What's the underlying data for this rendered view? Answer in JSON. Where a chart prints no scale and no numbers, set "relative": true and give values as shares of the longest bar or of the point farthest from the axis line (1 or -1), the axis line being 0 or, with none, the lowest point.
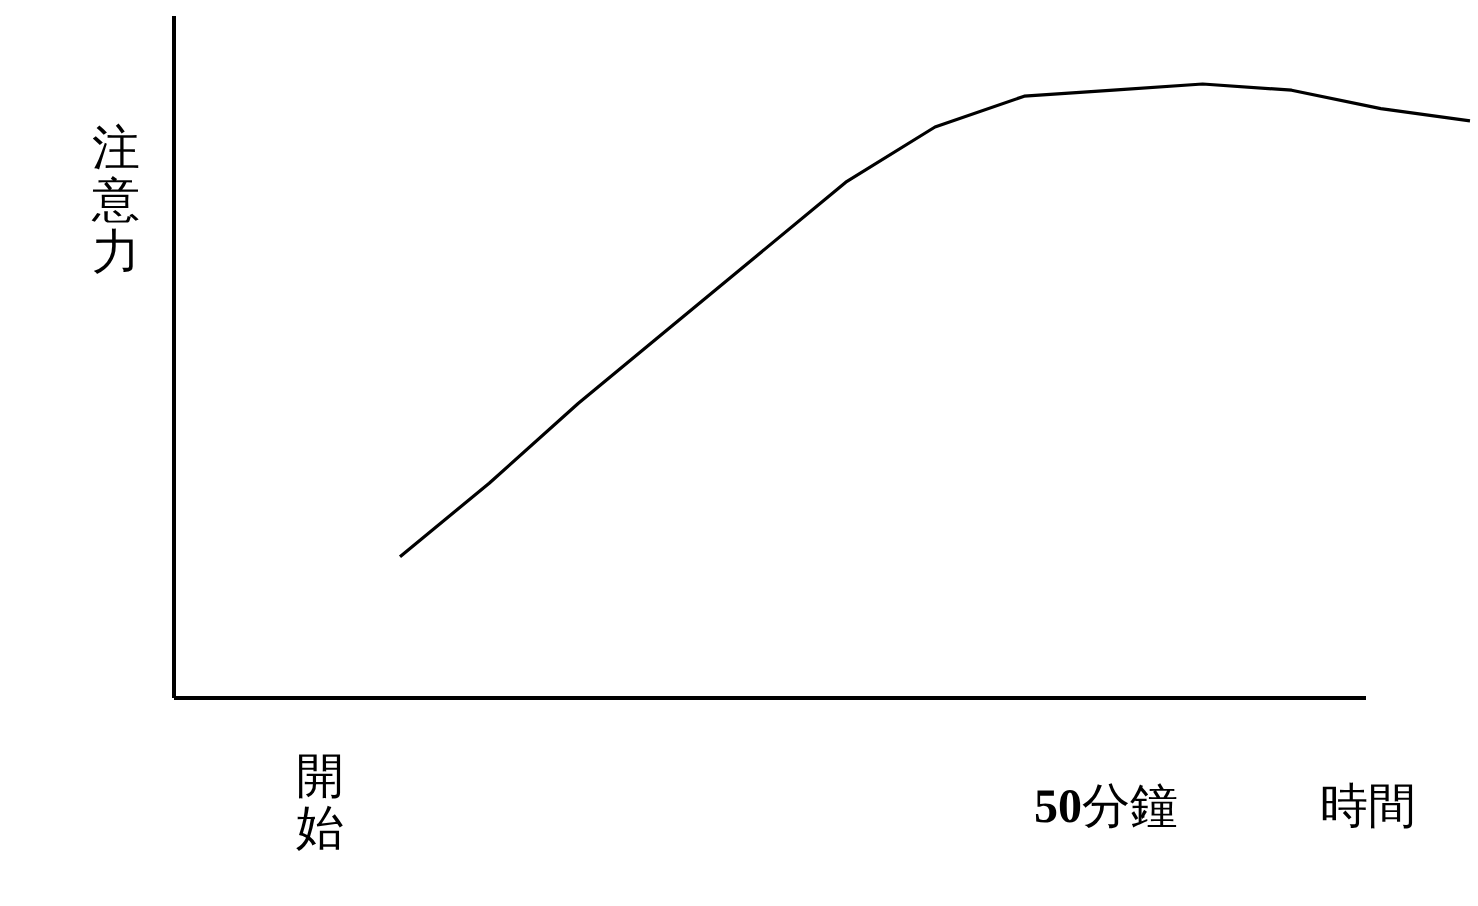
{
  "chart_data": {
    "type": "line",
    "relative": true,
    "ylabel": "注意力",
    "xlabel": "時間",
    "color": "#000000",
    "annotations": [
      "開始",
      "**50**分鐘"
    ],
    "categories": [
      null,
      null,
      null,
      null,
      null,
      null,
      null,
      null,
      null,
      null,
      null,
      null,
      null
    ],
    "values": [
      0.23,
      0.35,
      0.48,
      0.6,
      0.72,
      0.84,
      0.93,
      0.98,
      0.99,
      1,
      0.99,
      0.96,
      0.94
    ]
  }
}
